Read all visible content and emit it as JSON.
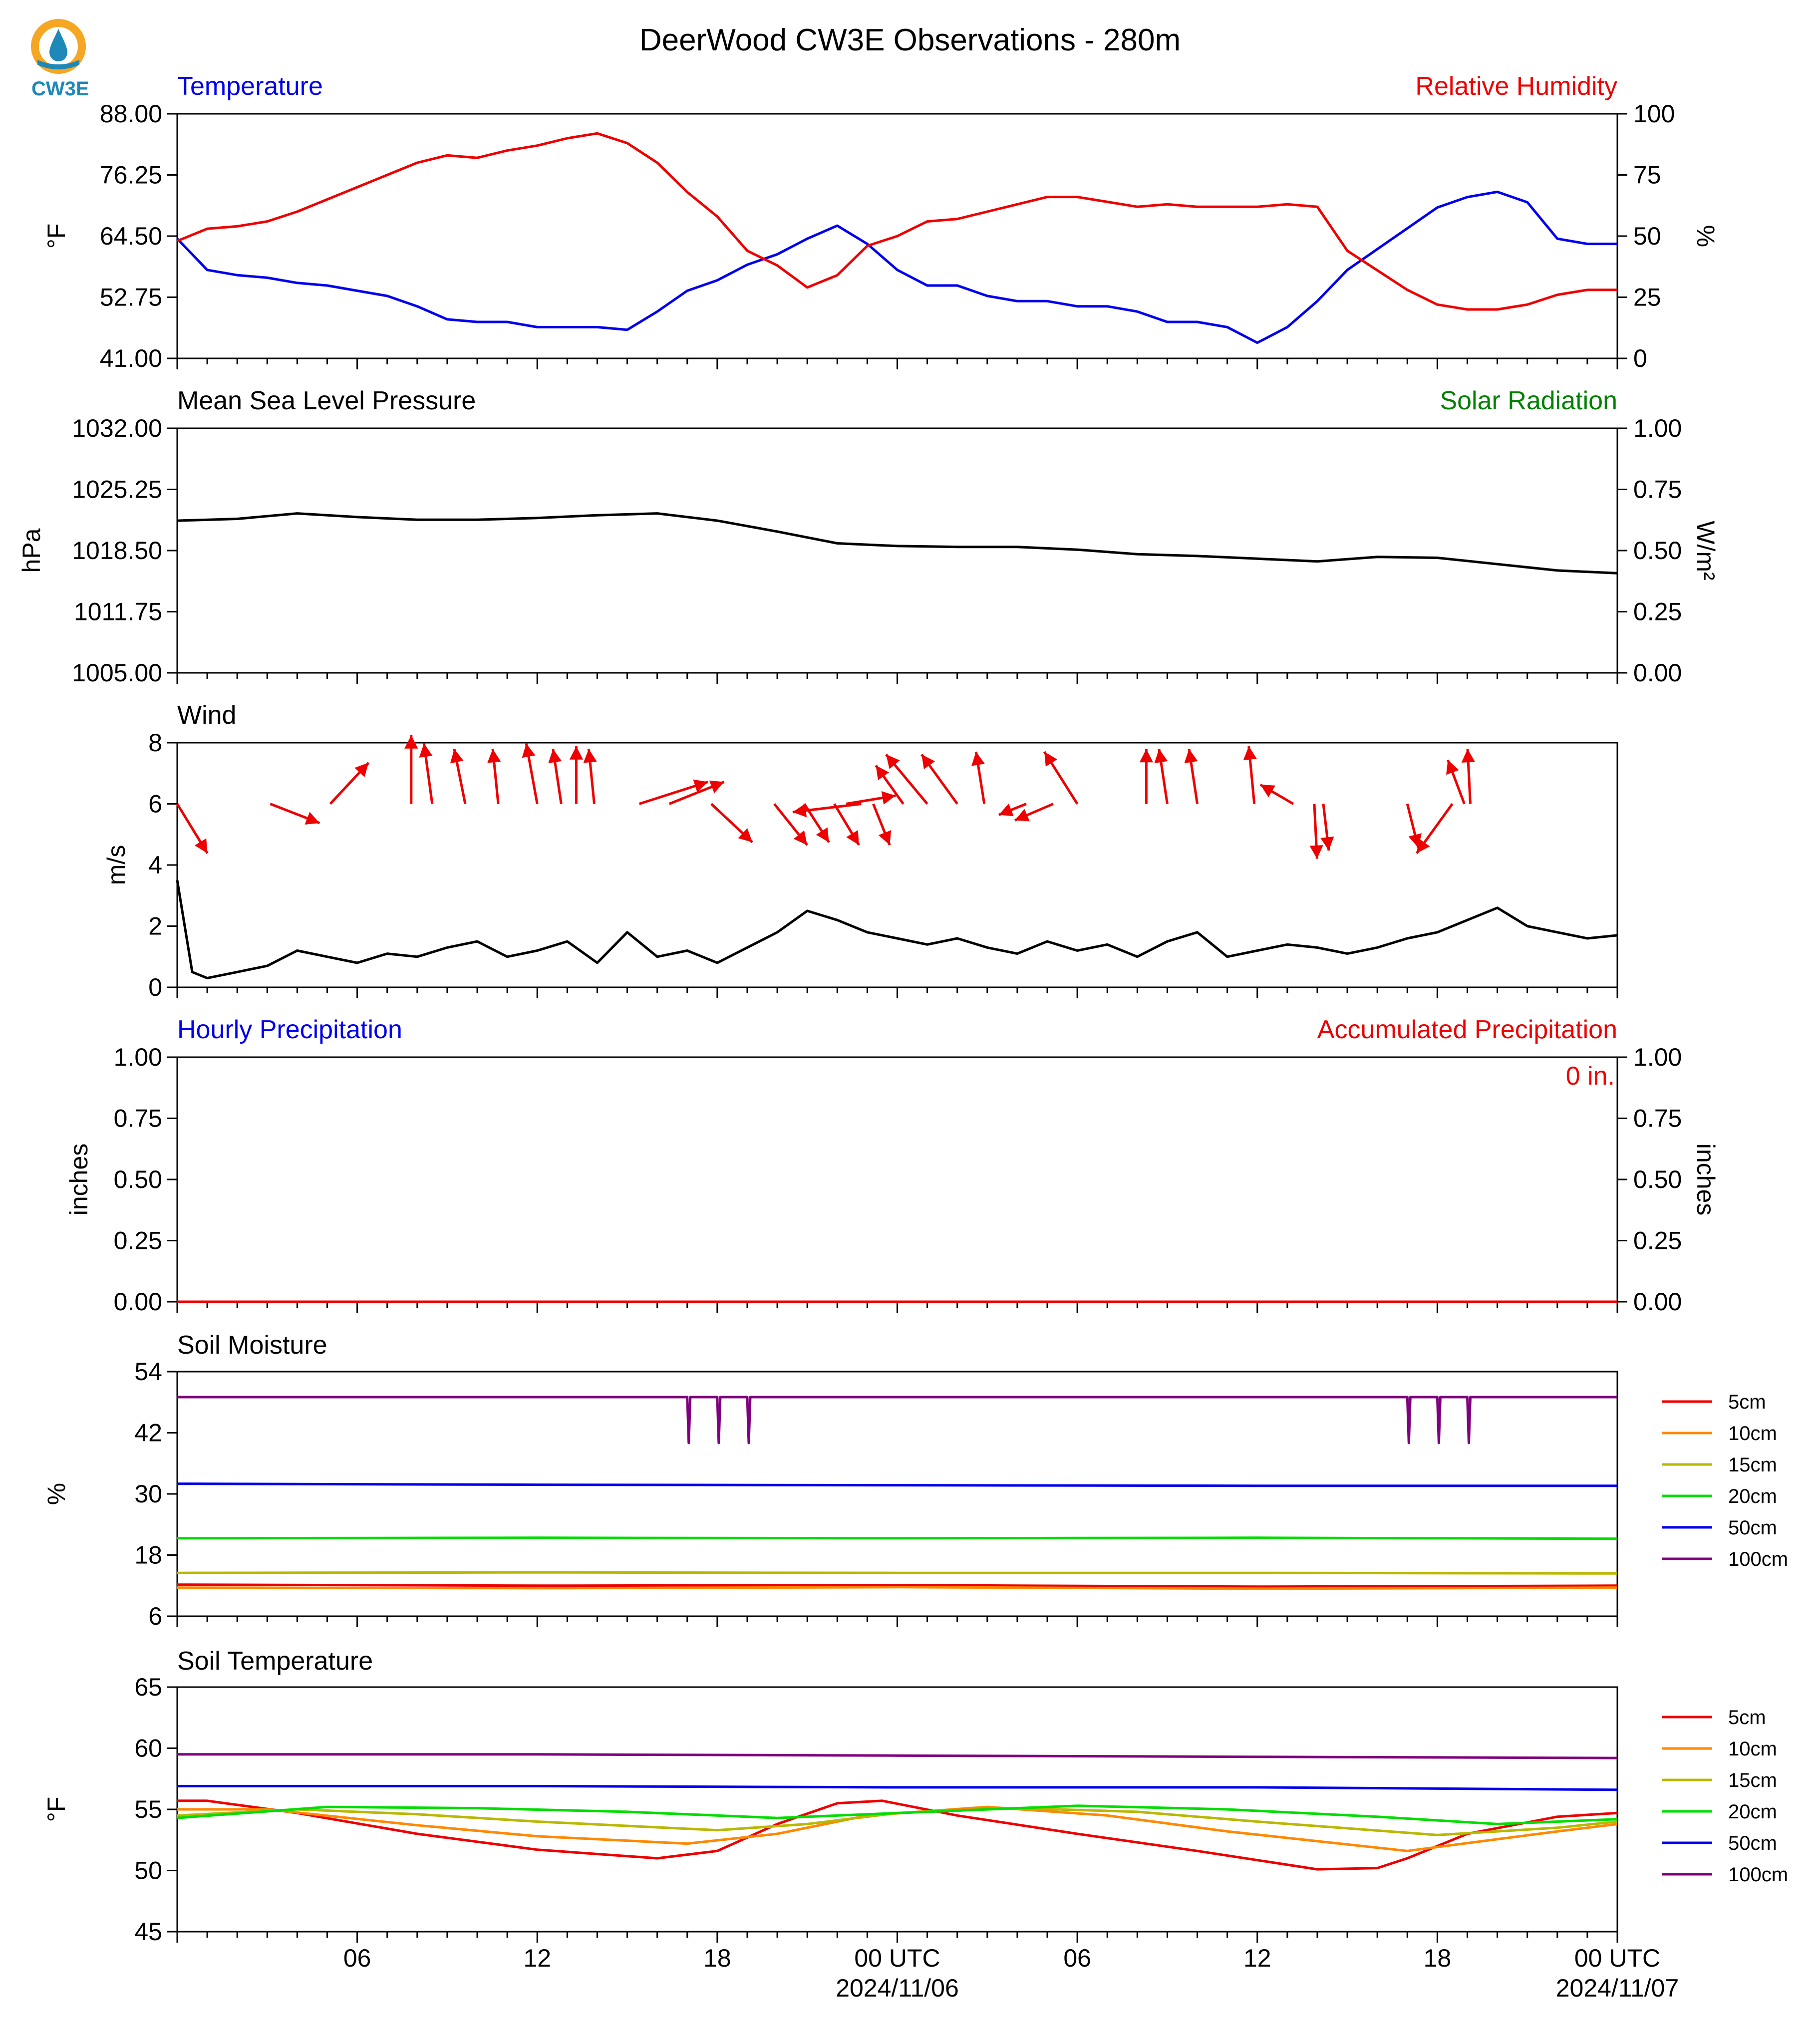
{
  "header": {
    "title": "DeerWood CW3E Observations - 280m",
    "logo_text": "CW3E"
  },
  "colors": {
    "blue": "#0000ee",
    "red": "#ee0000",
    "green": "#008000",
    "black": "#000000",
    "logo_orange": "#f5a623",
    "logo_blue": "#1e88b8"
  },
  "time_axis": {
    "tick_labels": [
      "06",
      "12",
      "18",
      "00 UTC",
      "06",
      "12",
      "18",
      "00 UTC"
    ],
    "date_labels": [
      "2024/11/06",
      "2024/11/07"
    ],
    "hours_since_start_range": [
      0,
      48
    ]
  },
  "chart_data": [
    {
      "id": "temperature_rh",
      "type": "line",
      "title_left": "Temperature",
      "title_right": "Relative Humidity",
      "ylabel_left": "°F",
      "ylabel_right": "%",
      "ylim_left": [
        41,
        88
      ],
      "ylim_right": [
        0,
        100
      ],
      "yticks_left": [
        "88.00",
        "76.25",
        "64.50",
        "52.75",
        "41.00"
      ],
      "yticks_right": [
        "100",
        "75",
        "50",
        "25",
        "0"
      ],
      "series": [
        {
          "name": "Temperature",
          "axis": "left",
          "color": "#0000ee",
          "x": [
            0,
            1,
            2,
            3,
            4,
            5,
            6,
            7,
            8,
            9,
            10,
            11,
            12,
            13,
            14,
            15,
            16,
            17,
            18,
            19,
            20,
            21,
            22,
            23,
            24,
            25,
            26,
            27,
            28,
            29,
            30,
            31,
            32,
            33,
            34,
            35,
            36,
            37,
            38,
            39,
            40,
            41,
            42,
            43,
            44,
            45,
            46,
            47,
            48
          ],
          "y": [
            64,
            58,
            57,
            56.5,
            55.5,
            55,
            54,
            53,
            51,
            48.5,
            48,
            48,
            47,
            47,
            47,
            46.5,
            50,
            54,
            56,
            59,
            61,
            64,
            66.5,
            63,
            58,
            55,
            55,
            53,
            52,
            52,
            51,
            51,
            50,
            48,
            48,
            47,
            44,
            47,
            52,
            58,
            62,
            66,
            70,
            72,
            73,
            71,
            64,
            63,
            63
          ]
        },
        {
          "name": "Relative Humidity",
          "axis": "right",
          "color": "#ee0000",
          "x": [
            0,
            1,
            2,
            3,
            4,
            5,
            6,
            7,
            8,
            9,
            10,
            11,
            12,
            13,
            14,
            15,
            16,
            17,
            18,
            19,
            20,
            21,
            22,
            23,
            24,
            25,
            26,
            27,
            28,
            29,
            30,
            31,
            32,
            33,
            34,
            35,
            36,
            37,
            38,
            39,
            40,
            41,
            42,
            43,
            44,
            45,
            46,
            47,
            48
          ],
          "y": [
            48,
            53,
            54,
            56,
            60,
            65,
            70,
            75,
            80,
            83,
            82,
            85,
            87,
            90,
            92,
            88,
            80,
            68,
            58,
            44,
            38,
            29,
            34,
            46,
            50,
            56,
            57,
            60,
            63,
            66,
            66,
            64,
            62,
            63,
            62,
            62,
            62,
            63,
            62,
            44,
            36,
            28,
            22,
            20,
            20,
            22,
            26,
            28,
            28
          ]
        }
      ]
    },
    {
      "id": "pressure_solar",
      "type": "line",
      "title_left": "Mean Sea Level Pressure",
      "title_right": "Solar Radiation",
      "ylabel_left": "hPa",
      "ylabel_right": "W/m²",
      "ylim_left": [
        1005,
        1032
      ],
      "ylim_right": [
        0,
        1
      ],
      "yticks_left": [
        "1032.00",
        "1025.25",
        "1018.50",
        "1011.75",
        "1005.00"
      ],
      "yticks_right": [
        "1.00",
        "0.75",
        "0.50",
        "0.25",
        "0.00"
      ],
      "series": [
        {
          "name": "Mean Sea Level Pressure",
          "axis": "left",
          "color": "#000000",
          "x": [
            0,
            2,
            4,
            6,
            8,
            10,
            12,
            14,
            16,
            18,
            20,
            22,
            24,
            26,
            28,
            30,
            32,
            34,
            36,
            38,
            40,
            42,
            44,
            46,
            48
          ],
          "y": [
            1021.8,
            1022.0,
            1022.6,
            1022.2,
            1021.9,
            1021.9,
            1022.1,
            1022.4,
            1022.6,
            1021.8,
            1020.6,
            1019.3,
            1019.0,
            1018.9,
            1018.9,
            1018.6,
            1018.1,
            1017.9,
            1017.6,
            1017.3,
            1017.8,
            1017.7,
            1017.0,
            1016.3,
            1016.0
          ]
        }
      ]
    },
    {
      "id": "wind",
      "type": "line",
      "title_left": "Wind",
      "ylabel_left": "m/s",
      "ylim_left": [
        0,
        8
      ],
      "yticks_left": [
        "8",
        "6",
        "4",
        "2",
        "0"
      ],
      "series": [
        {
          "name": "Wind Speed",
          "axis": "left",
          "color": "#000000",
          "x": [
            0,
            0.5,
            1,
            2,
            3,
            4,
            5,
            6,
            7,
            8,
            9,
            10,
            11,
            12,
            13,
            14,
            15,
            16,
            17,
            18,
            19,
            20,
            21,
            22,
            23,
            24,
            25,
            26,
            27,
            28,
            29,
            30,
            31,
            32,
            33,
            34,
            35,
            36,
            37,
            38,
            39,
            40,
            41,
            42,
            43,
            44,
            45,
            46,
            47,
            48
          ],
          "y": [
            3.5,
            0.5,
            0.3,
            0.5,
            0.7,
            1.2,
            1.0,
            0.8,
            1.1,
            1.0,
            1.3,
            1.5,
            1.0,
            1.2,
            1.5,
            0.8,
            1.8,
            1.0,
            1.2,
            0.8,
            1.3,
            1.8,
            2.5,
            2.2,
            1.8,
            1.6,
            1.4,
            1.6,
            1.3,
            1.1,
            1.5,
            1.2,
            1.4,
            1.0,
            1.5,
            1.8,
            1.0,
            1.2,
            1.4,
            1.3,
            1.1,
            1.3,
            1.6,
            1.8,
            2.2,
            2.6,
            2.0,
            1.8,
            1.6,
            1.7
          ]
        },
        {
          "name": "Wind Direction",
          "type": "vectors",
          "color": "#ee0000",
          "x": [
            0.0,
            3.1,
            5.1,
            7.8,
            8.5,
            9.6,
            10.7,
            12.0,
            12.8,
            13.3,
            13.9,
            15.4,
            16.4,
            17.8,
            19.9,
            20.9,
            21.9,
            22.3,
            22.8,
            23.2,
            24.2,
            25.0,
            26.0,
            26.9,
            28.3,
            29.2,
            30.0,
            32.3,
            33.0,
            34.0,
            35.9,
            37.2,
            37.9,
            38.2,
            41.0,
            42.5,
            42.9,
            43.1
          ],
          "u": [
            1.1,
            1.8,
            1.4,
            0.0,
            -0.3,
            -0.4,
            -0.2,
            -0.4,
            -0.3,
            0.0,
            -0.2,
            2.5,
            2.0,
            1.5,
            1.2,
            0.9,
            0.9,
            1.8,
            -2.5,
            0.6,
            -1.0,
            -1.5,
            -1.3,
            -0.3,
            -1.0,
            -1.4,
            -1.2,
            0.0,
            -0.3,
            -0.3,
            -0.2,
            -1.2,
            0.1,
            0.2,
            0.4,
            -1.3,
            -0.6,
            -0.1
          ],
          "v": [
            -1.8,
            -0.7,
            1.5,
            2.5,
            2.2,
            2.0,
            2.0,
            2.2,
            2.0,
            2.1,
            2.0,
            0.8,
            0.8,
            -1.4,
            -1.5,
            -1.4,
            -1.5,
            0.3,
            -0.3,
            -1.5,
            1.4,
            1.8,
            1.8,
            1.9,
            -0.4,
            -0.6,
            1.9,
            2.0,
            2.0,
            2.0,
            2.1,
            0.7,
            -2.0,
            -1.7,
            -1.6,
            -1.8,
            1.6,
            2.0
          ]
        }
      ]
    },
    {
      "id": "precipitation",
      "type": "line",
      "title_left": "Hourly Precipitation",
      "title_right": "Accumulated Precipitation",
      "ylabel_left": "inches",
      "ylabel_right": "inches",
      "ylim_left": [
        0,
        1
      ],
      "ylim_right": [
        0,
        1
      ],
      "yticks_left": [
        "1.00",
        "0.75",
        "0.50",
        "0.25",
        "0.00"
      ],
      "yticks_right": [
        "1.00",
        "0.75",
        "0.50",
        "0.25",
        "0.00"
      ],
      "annotation": "0 in.",
      "series": [
        {
          "name": "Accumulated Precipitation",
          "axis": "right",
          "color": "#ee0000",
          "x": [
            0,
            48
          ],
          "y": [
            0,
            0
          ]
        }
      ]
    },
    {
      "id": "soil_moisture",
      "type": "line",
      "title_left": "Soil Moisture",
      "ylabel_left": "%",
      "ylim_left": [
        6,
        54
      ],
      "yticks_left": [
        "54",
        "42",
        "30",
        "18",
        "6"
      ],
      "legend_position": "right",
      "series": [
        {
          "name": "5cm",
          "color": "#ee0000",
          "x": [
            0,
            12,
            24,
            36,
            48
          ],
          "y": [
            12.2,
            12.0,
            12.1,
            11.8,
            12.0
          ]
        },
        {
          "name": "10cm",
          "color": "#ff8800",
          "x": [
            0,
            12,
            24,
            36,
            48
          ],
          "y": [
            11.6,
            11.5,
            11.7,
            11.4,
            11.6
          ]
        },
        {
          "name": "15cm",
          "color": "#b8b800",
          "x": [
            0,
            12,
            24,
            36,
            48
          ],
          "y": [
            14.5,
            14.6,
            14.5,
            14.5,
            14.4
          ]
        },
        {
          "name": "20cm",
          "color": "#00dd00",
          "x": [
            0,
            12,
            24,
            36,
            48
          ],
          "y": [
            21.3,
            21.4,
            21.3,
            21.4,
            21.2
          ]
        },
        {
          "name": "50cm",
          "color": "#0000ee",
          "x": [
            0,
            12,
            24,
            36,
            48
          ],
          "y": [
            32.0,
            31.8,
            31.7,
            31.6,
            31.6
          ]
        },
        {
          "name": "100cm",
          "color": "#7f007f",
          "x": [
            0,
            17.0,
            17.05,
            17.1,
            18.0,
            18.05,
            18.1,
            19.0,
            19.05,
            19.1,
            41.0,
            41.05,
            41.1,
            42.0,
            42.05,
            42.1,
            43.0,
            43.05,
            43.1,
            48
          ],
          "y": [
            49,
            49,
            40,
            49,
            49,
            40,
            49,
            49,
            40,
            49,
            49,
            40,
            49,
            49,
            40,
            49,
            49,
            40,
            49,
            49
          ]
        }
      ]
    },
    {
      "id": "soil_temperature",
      "type": "line",
      "title_left": "Soil Temperature",
      "ylabel_left": "°F",
      "ylim_left": [
        45,
        65
      ],
      "yticks_left": [
        "65",
        "60",
        "55",
        "50",
        "45"
      ],
      "legend_position": "right",
      "series": [
        {
          "name": "5cm",
          "color": "#ee0000",
          "x": [
            0,
            1,
            4,
            8,
            12,
            16,
            18,
            20,
            22,
            23.5,
            26,
            30,
            34,
            38,
            40,
            41,
            43,
            46,
            48
          ],
          "y": [
            55.7,
            55.7,
            54.7,
            53.0,
            51.7,
            51.0,
            51.6,
            53.8,
            55.5,
            55.7,
            54.5,
            53.0,
            51.6,
            50.1,
            50.2,
            51.0,
            53.0,
            54.4,
            54.7
          ]
        },
        {
          "name": "10cm",
          "color": "#ff8800",
          "x": [
            0,
            3,
            8,
            12,
            17,
            20,
            23,
            27,
            31,
            35,
            41,
            46,
            48
          ],
          "y": [
            55.0,
            55.0,
            53.7,
            52.8,
            52.2,
            53.0,
            54.5,
            55.2,
            54.5,
            53.2,
            51.6,
            53.2,
            53.8
          ]
        },
        {
          "name": "15cm",
          "color": "#b8b800",
          "x": [
            0,
            4,
            8,
            12,
            18,
            21,
            24,
            28,
            32,
            36,
            42,
            46,
            48
          ],
          "y": [
            54.5,
            55.0,
            54.6,
            54.0,
            53.3,
            53.8,
            54.7,
            55.1,
            54.8,
            54.0,
            52.9,
            53.5,
            54.0
          ]
        },
        {
          "name": "20cm",
          "color": "#00dd00",
          "x": [
            0,
            5,
            10,
            15,
            20,
            25,
            30,
            35,
            40,
            44,
            48
          ],
          "y": [
            54.3,
            55.2,
            55.1,
            54.8,
            54.3,
            54.8,
            55.3,
            55.0,
            54.4,
            53.8,
            54.2
          ]
        },
        {
          "name": "50cm",
          "color": "#0000ee",
          "x": [
            0,
            12,
            24,
            36,
            48
          ],
          "y": [
            56.9,
            56.9,
            56.8,
            56.8,
            56.6
          ]
        },
        {
          "name": "100cm",
          "color": "#7f007f",
          "x": [
            0,
            12,
            24,
            36,
            48
          ],
          "y": [
            59.5,
            59.5,
            59.4,
            59.3,
            59.2
          ]
        }
      ]
    }
  ]
}
